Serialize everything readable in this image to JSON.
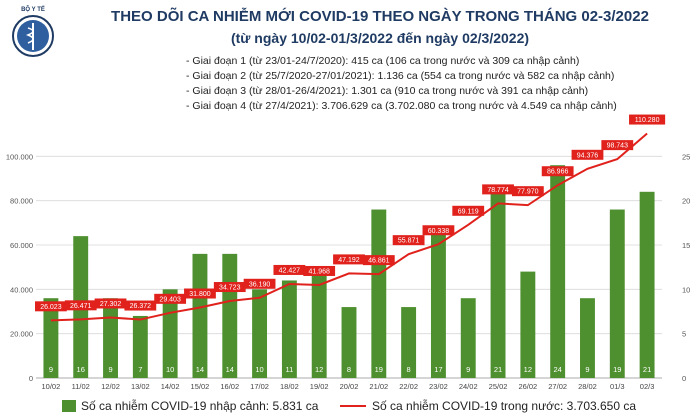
{
  "header": {
    "title": "THEO DÕI CA NHIỄM MỚI COVID-19 THEO NGÀY TRONG THÁNG 02-3/2022",
    "subtitle": "(từ ngày 10/02-01/3/2022 đến ngày 02/3/2022)",
    "logo_text": "BỘ Y TẾ",
    "phases": [
      "- Giai đoạn 1 (từ 23/01-24/7/2020): 415 ca (106 ca trong nước và 309 ca nhập cảnh)",
      "- Giai đoạn 2 (từ 25/7/2020-27/01/2021): 1.136 ca (554 ca trong nước và 582 ca nhập cảnh)",
      "- Giai đoạn 3 (từ 28/01-26/4/2021): 1.301 ca (910 ca trong nước và 391 ca nhập cảnh)",
      "- Giai đoạn 4 (từ 27/4/2021): 3.706.629 ca (3.702.080 ca trong nước và 4.549 ca nhập cảnh)"
    ]
  },
  "colors": {
    "bar": "#4e8f2f",
    "line": "#e0211c",
    "title": "#1f3b63"
  },
  "legend": {
    "bar_label": "Số ca nhiễm COVID-19 nhập cảnh: 5.831 ca",
    "line_label": "Số ca nhiễm COVID-19 trong nước: 3.703.650 ca"
  },
  "chart_data": {
    "type": "bar",
    "categories": [
      "10/02",
      "11/02",
      "12/02",
      "13/02",
      "14/02",
      "15/02",
      "16/02",
      "17/02",
      "18/02",
      "19/02",
      "20/02",
      "21/02",
      "22/02",
      "23/02",
      "24/02",
      "25/02",
      "26/02",
      "27/02",
      "28/02",
      "01/3",
      "02/3"
    ],
    "left_axis": {
      "ticks": [
        "0",
        "20.000",
        "40.000",
        "60.000",
        "80.000",
        "100.000"
      ],
      "ylim": [
        0,
        120000
      ]
    },
    "right_axis": {
      "ticks": [
        "0",
        "5",
        "10",
        "15",
        "20",
        "25"
      ],
      "ylim": [
        0,
        30
      ]
    },
    "series": [
      {
        "name": "Số ca nhiễm COVID-19 nhập cảnh: 5.831 ca",
        "type": "bar",
        "axis": "right",
        "values": [
          9,
          16,
          9,
          7,
          10,
          14,
          14,
          10,
          11,
          12,
          8,
          19,
          8,
          17,
          9,
          21,
          12,
          24,
          9,
          19,
          21
        ],
        "labels": [
          "9",
          "16",
          "9",
          "7",
          "10",
          "14",
          "14",
          "10",
          "11",
          "12",
          "8",
          "19",
          "8",
          "17",
          "9",
          "21",
          "12",
          "24",
          "9",
          "19",
          "21"
        ]
      },
      {
        "name": "Số ca nhiễm COVID-19 trong nước: 3.703.650 ca",
        "type": "line",
        "axis": "left",
        "values": [
          26023,
          26471,
          27302,
          26372,
          29403,
          31800,
          34723,
          36190,
          42427,
          41968,
          47192,
          46861,
          55871,
          60338,
          69119,
          78774,
          77970,
          86966,
          94376,
          98743,
          110280
        ],
        "labels": [
          "26.023",
          "26.471",
          "27.302",
          "26.372",
          "29.403",
          "31.800",
          "34.723",
          "36.190",
          "42.427",
          "41.968",
          "47.192",
          "46.861",
          "55.871",
          "60.338",
          "69.119",
          "78.774",
          "77.970",
          "86.966",
          "94.376",
          "98.743",
          "110.280"
        ]
      }
    ],
    "grid": true,
    "legend_position": "bottom"
  }
}
